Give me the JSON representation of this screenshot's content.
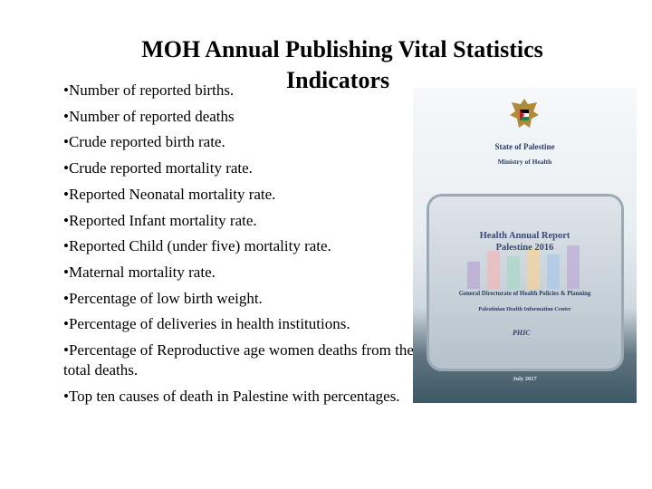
{
  "slide": {
    "title_line1": "MOH Annual Publishing Vital Statistics",
    "title_line2": "Indicators",
    "bullets": [
      "Number of reported births.",
      "Number of reported deaths",
      "Crude reported birth rate.",
      "Crude reported mortality rate.",
      "Reported Neonatal mortality rate.",
      "Reported Infant mortality rate.",
      "Reported Child (under five) mortality rate.",
      "Maternal mortality rate.",
      "Percentage of low birth weight.",
      "Percentage of deliveries in health institutions.",
      "Percentage of Reproductive age women deaths from the total deaths.",
      "Top ten causes of death in Palestine with percentages."
    ]
  },
  "cover": {
    "state": "State of Palestine",
    "ministry": "Ministry of Health",
    "report_title_line1": "Health Annual Report",
    "report_title_line2": "Palestine 2016",
    "department": "General Directorate of Health Policies & Planning",
    "center": "Palestinian Health Information Center",
    "logo_text": "PHIC",
    "date": "July 2017",
    "emblem_icon": "eagle-emblem-icon",
    "colors": {
      "bar_colors": [
        "#b9a4d6",
        "#f2b7b7",
        "#a7d7c5",
        "#f5d39a",
        "#a9c8ea"
      ]
    }
  }
}
